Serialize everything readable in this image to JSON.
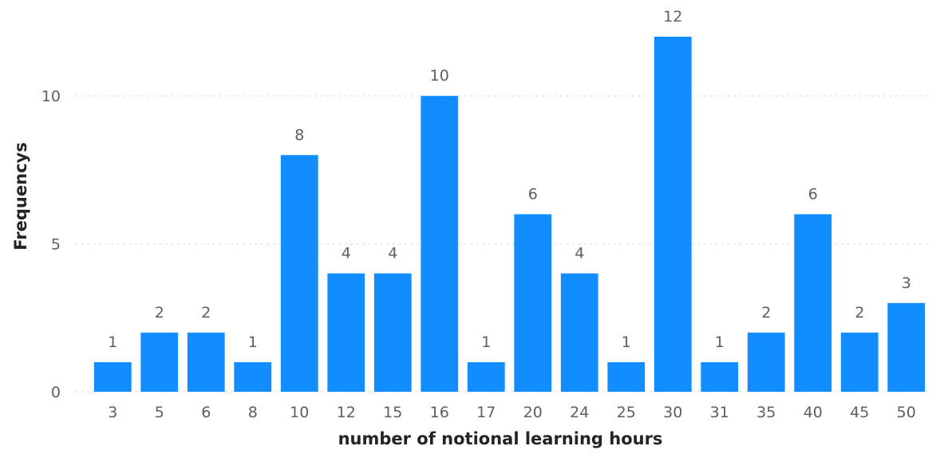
{
  "chart_data": {
    "type": "bar",
    "title": "",
    "xlabel": "number of notional learning hours",
    "ylabel": "Frequencys",
    "categories": [
      "3",
      "5",
      "6",
      "8",
      "10",
      "12",
      "15",
      "16",
      "17",
      "20",
      "24",
      "25",
      "30",
      "31",
      "35",
      "40",
      "45",
      "50"
    ],
    "values": [
      1,
      2,
      2,
      1,
      8,
      4,
      4,
      10,
      1,
      6,
      4,
      1,
      12,
      1,
      2,
      6,
      2,
      3
    ],
    "ylim": [
      0,
      12
    ],
    "yticks": [
      0,
      5,
      10
    ],
    "grid": true,
    "data_labels": true,
    "bar_color": "#118dff"
  }
}
